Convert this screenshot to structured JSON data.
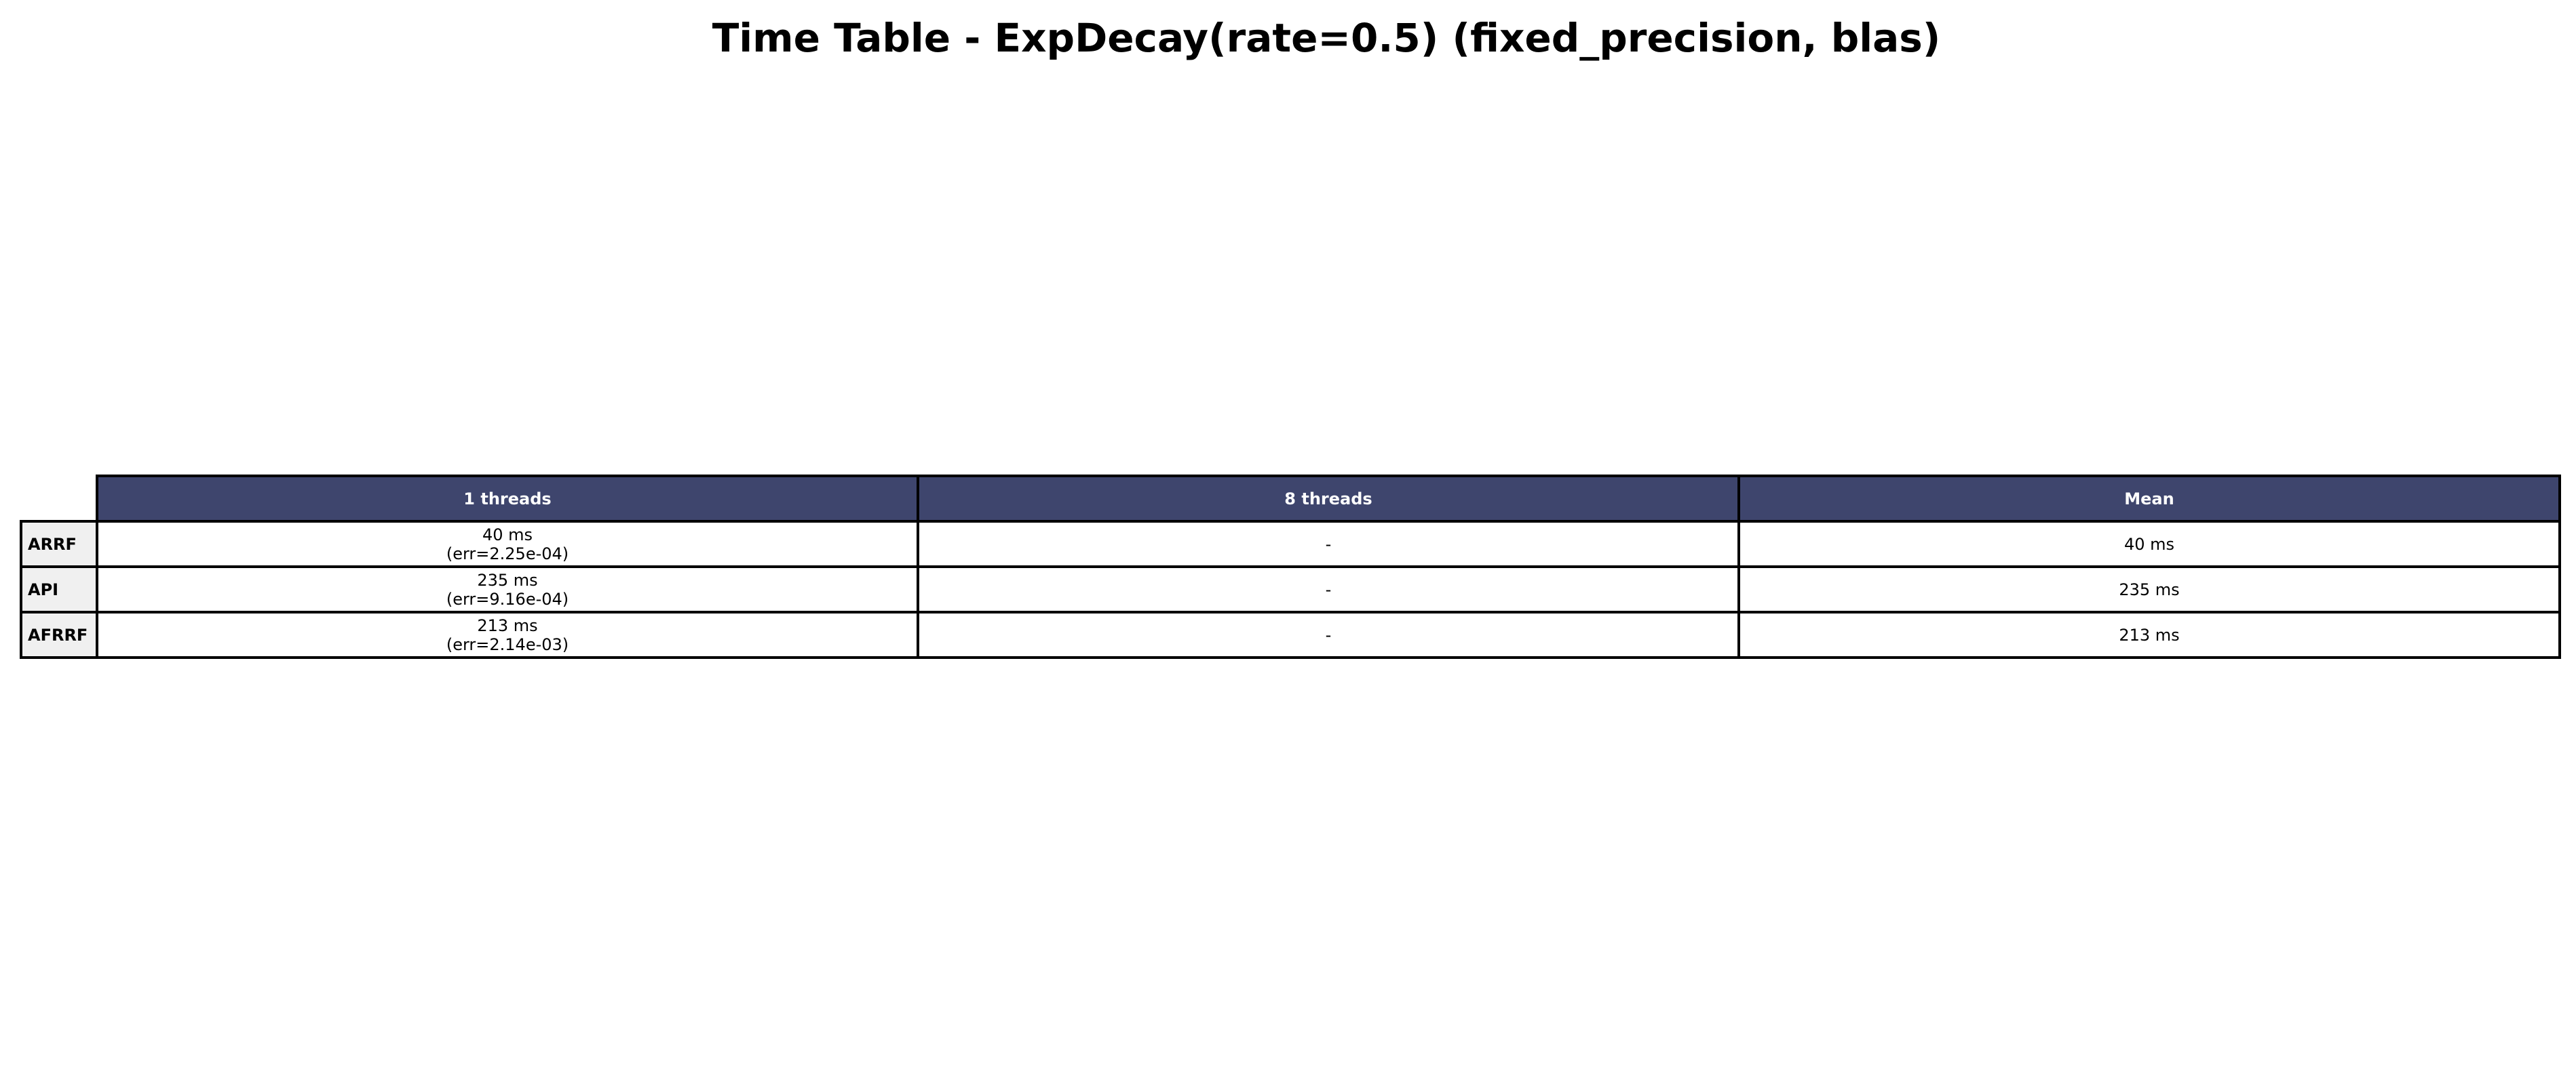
{
  "title": "Time Table - ExpDecay(rate=0.5) (fixed_precision, blas)",
  "colors": {
    "header_bg": "#3e456d",
    "header_text": "#ffffff",
    "row_header_bg": "#f0f0f0",
    "border": "#000000"
  },
  "chart_data": {
    "type": "table",
    "title": "Time Table - ExpDecay(rate=0.5) (fixed_precision, blas)",
    "columns": [
      "1 threads",
      "8 threads",
      "Mean"
    ],
    "rows": [
      {
        "label": "ARRF",
        "cells": [
          {
            "value": "40 ms",
            "err": "(err=2.25e-04)"
          },
          {
            "value": "-"
          },
          {
            "value": "40 ms"
          }
        ]
      },
      {
        "label": "API",
        "cells": [
          {
            "value": "235 ms",
            "err": "(err=9.16e-04)"
          },
          {
            "value": "-"
          },
          {
            "value": "235 ms"
          }
        ]
      },
      {
        "label": "AFRRF",
        "cells": [
          {
            "value": "213 ms",
            "err": "(err=2.14e-03)"
          },
          {
            "value": "-"
          },
          {
            "value": "213 ms"
          }
        ]
      }
    ]
  }
}
